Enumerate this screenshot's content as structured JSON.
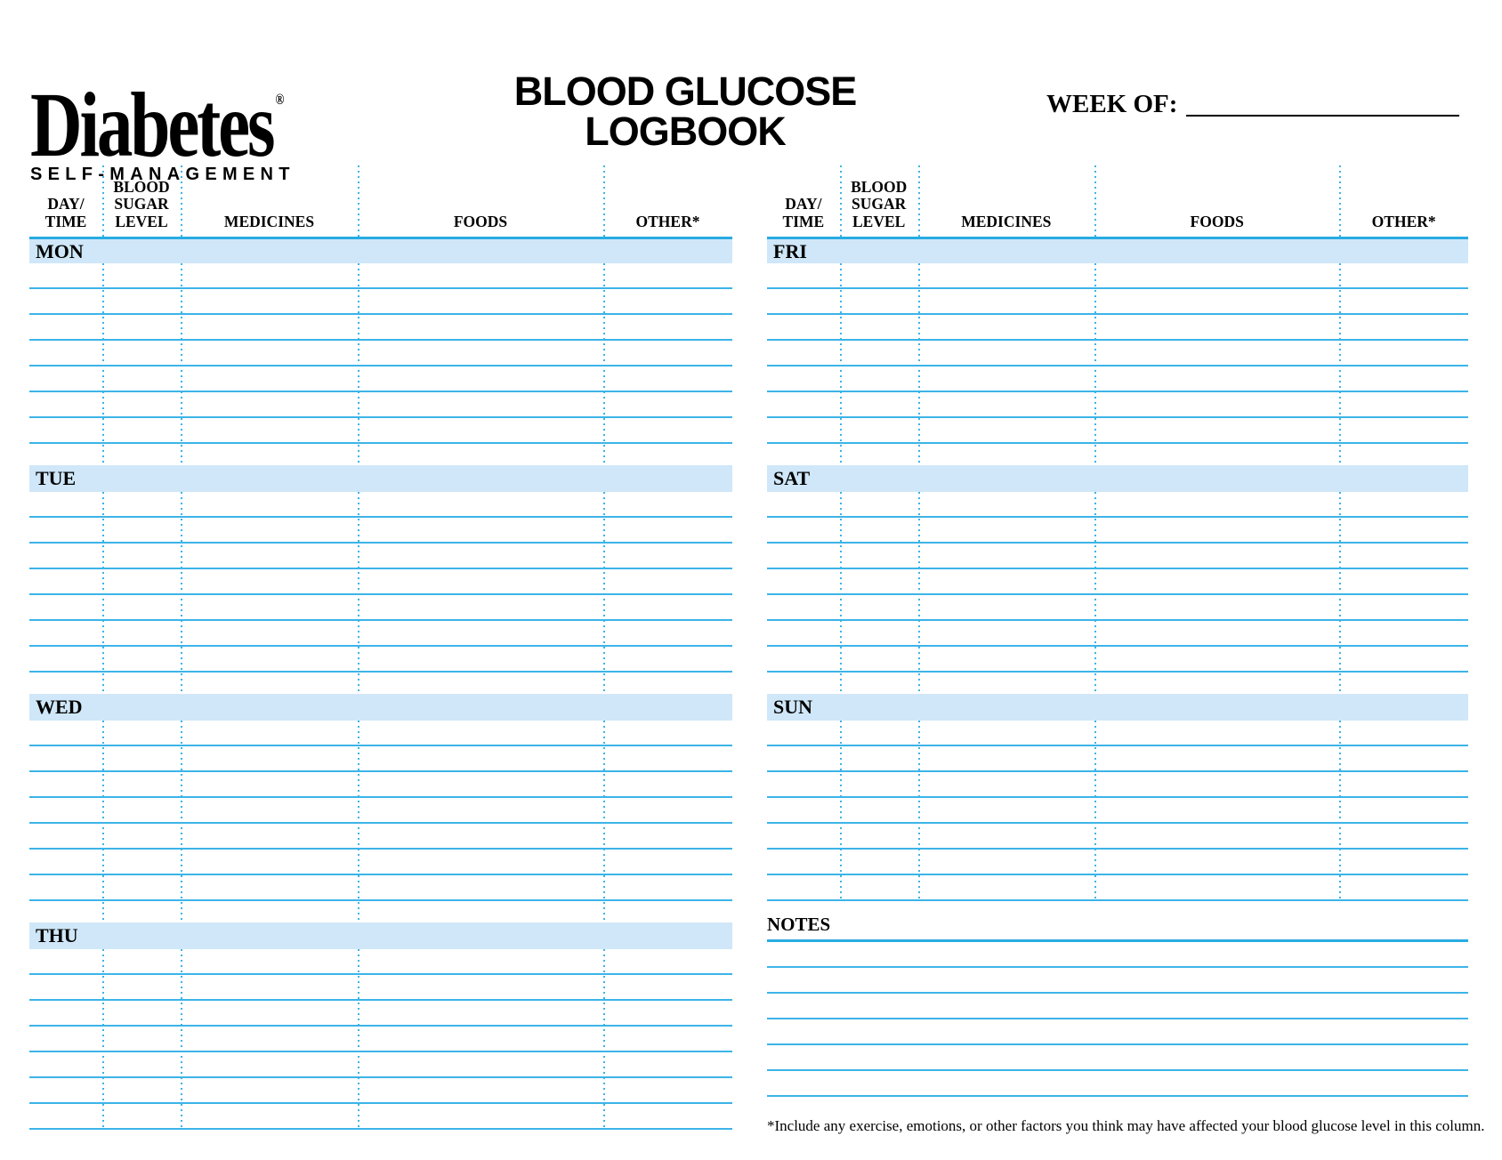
{
  "logo": {
    "wordmark": "Diabetes",
    "registered_mark": "®",
    "tagline": "SELF-MANAGEMENT"
  },
  "title": {
    "line1": "BLOOD GLUCOSE",
    "line2": "LOGBOOK"
  },
  "week_of": {
    "label": "WEEK OF:",
    "value": ""
  },
  "columns": [
    {
      "id": "day-time",
      "lines": [
        "DAY/",
        "TIME"
      ]
    },
    {
      "id": "blood-sugar-level",
      "lines": [
        "BLOOD",
        "SUGAR",
        "LEVEL"
      ]
    },
    {
      "id": "medicines",
      "lines": [
        "MEDICINES"
      ]
    },
    {
      "id": "foods",
      "lines": [
        "FOODS"
      ]
    },
    {
      "id": "other",
      "lines": [
        "OTHER*"
      ]
    }
  ],
  "tables": {
    "rows_per_day": 7,
    "left": {
      "days": [
        "MON",
        "TUE",
        "WED",
        "THU"
      ]
    },
    "right": {
      "days": [
        "FRI",
        "SAT",
        "SUN"
      ]
    }
  },
  "notes": {
    "label": "NOTES",
    "line_count": 6,
    "value": ""
  },
  "footnote": "*Include any exercise, emotions, or other factors you think may have affected your blood glucose level in this column.",
  "colors": {
    "accent": "#29abe2",
    "line": "#3cb4e8",
    "bar": "#cfe7f8",
    "ink": "#000000"
  }
}
